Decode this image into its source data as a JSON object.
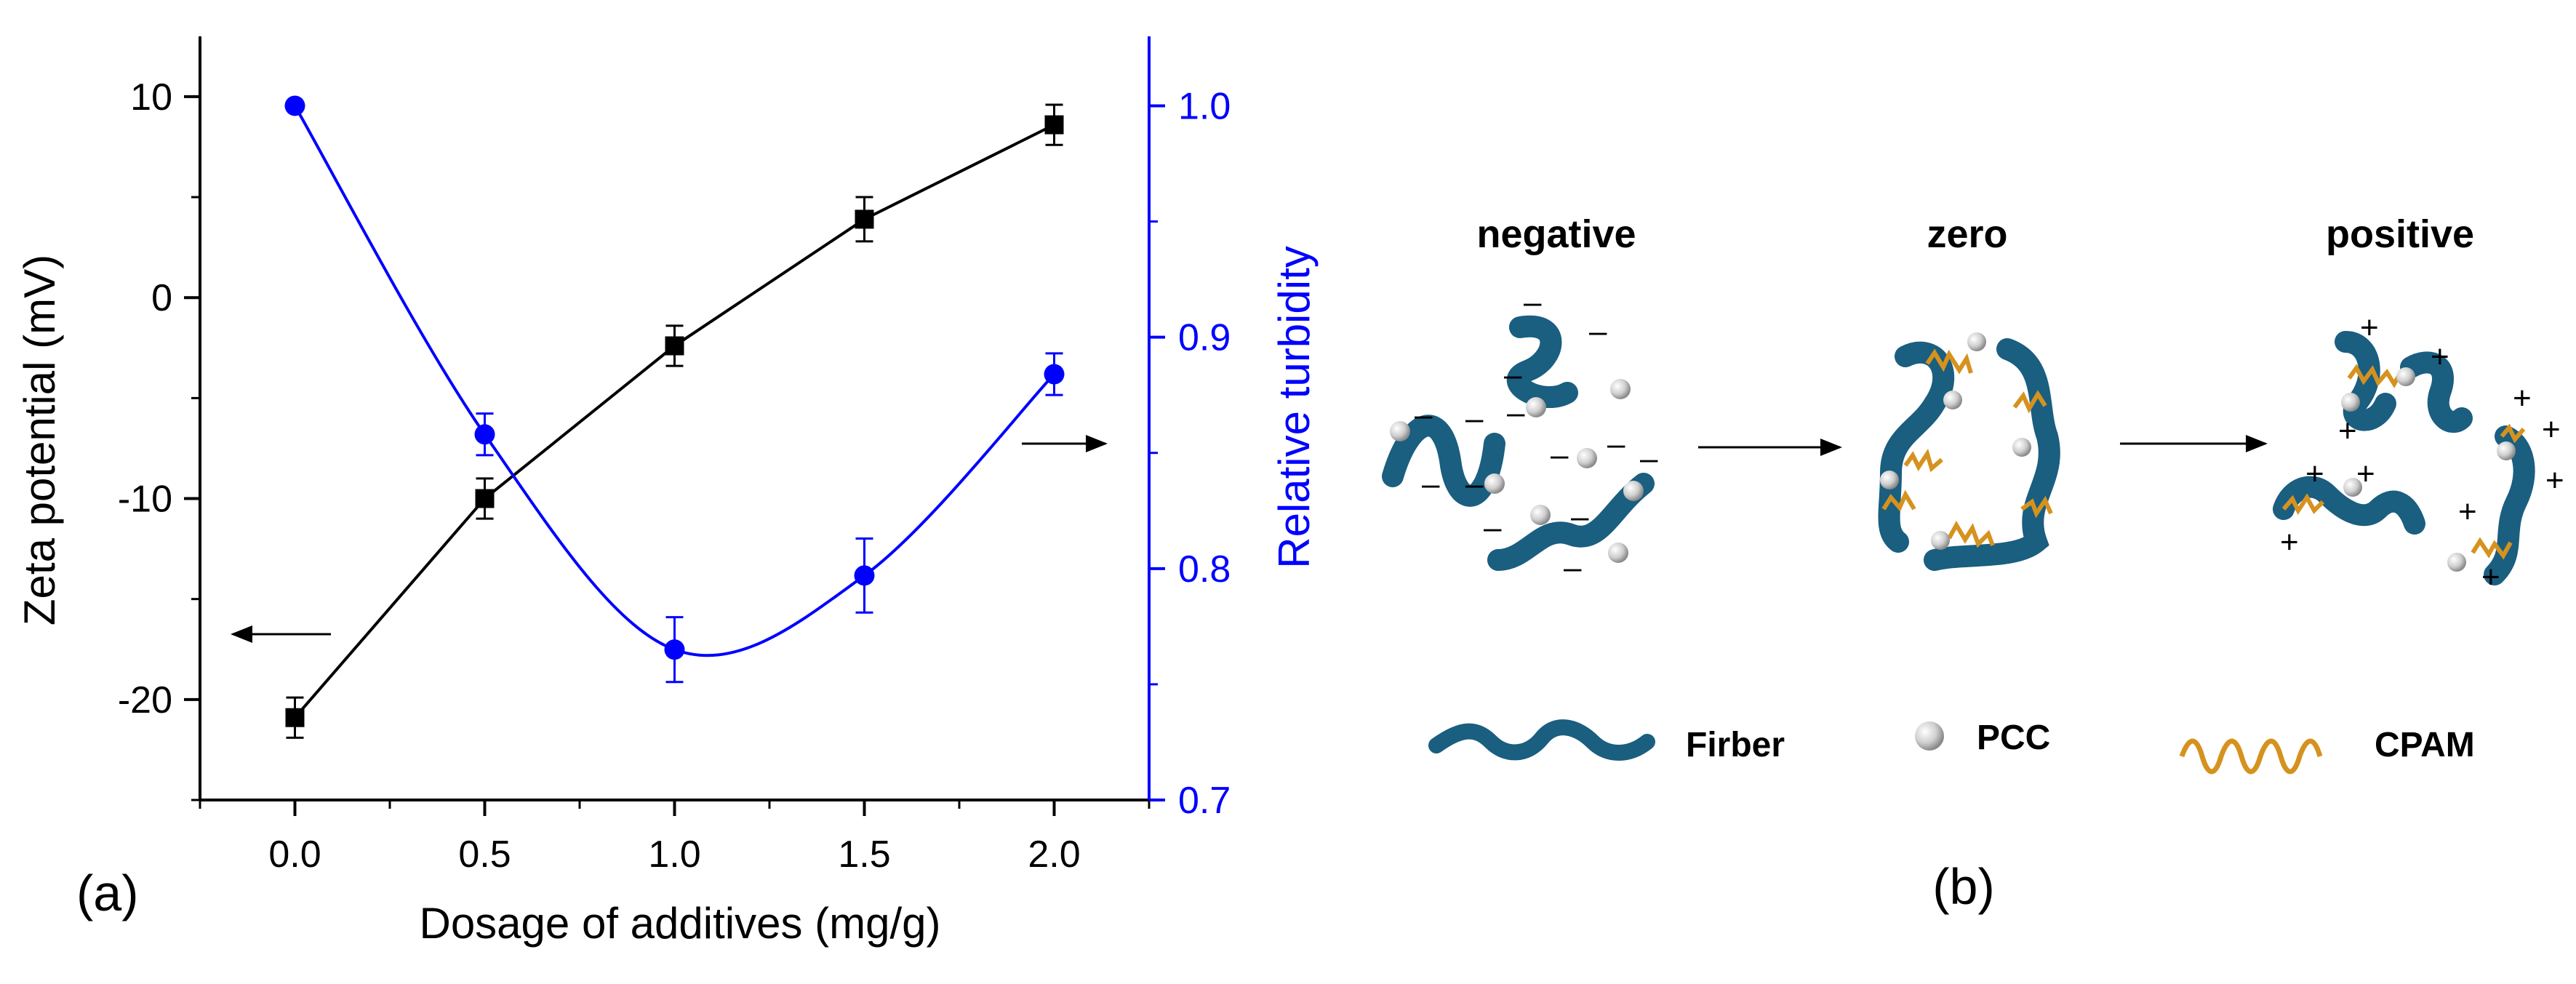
{
  "chart_data": {
    "type": "line",
    "panel_label": "(a)",
    "xlabel": "Dosage of additives (mg/g)",
    "ylabel_left": "Zeta potential (mV)",
    "ylabel_right": "Relative turbidity",
    "xlim": [
      -0.25,
      2.25
    ],
    "ylim_left": [
      -25,
      13
    ],
    "ylim_right": [
      0.7,
      1.03
    ],
    "x_ticks": [
      "0.0",
      "0.5",
      "1.0",
      "1.5",
      "2.0"
    ],
    "y_left_ticks": [
      "-20",
      "-10",
      "0",
      "10"
    ],
    "y_right_ticks": [
      "0.7",
      "0.8",
      "0.9",
      "1.0"
    ],
    "series": [
      {
        "name": "Zeta potential",
        "axis": "left",
        "color": "#000000",
        "marker": "square",
        "x": [
          0.0,
          0.5,
          1.0,
          1.5,
          2.0
        ],
        "values": [
          -20.9,
          -10.0,
          -2.4,
          3.9,
          8.6
        ],
        "errors": [
          1.0,
          1.0,
          1.0,
          1.1,
          1.0
        ]
      },
      {
        "name": "Relative turbidity",
        "axis": "right",
        "color": "#0000ff",
        "marker": "circle",
        "x": [
          0.0,
          0.5,
          1.0,
          1.5,
          2.0
        ],
        "values": [
          1.0,
          0.858,
          0.765,
          0.797,
          0.884
        ],
        "errors": [
          0.0,
          0.009,
          0.014,
          0.016,
          0.009
        ]
      }
    ]
  },
  "diagram": {
    "panel_label": "(b)",
    "states": [
      "negative",
      "zero",
      "positive"
    ],
    "legend": {
      "fiber_label": "Firber",
      "pcc_label": "PCC",
      "cpam_label": "CPAM"
    },
    "colors": {
      "fiber": "#1a5e80",
      "cpam": "#d6921e",
      "pcc": "#d8d8d8"
    }
  }
}
